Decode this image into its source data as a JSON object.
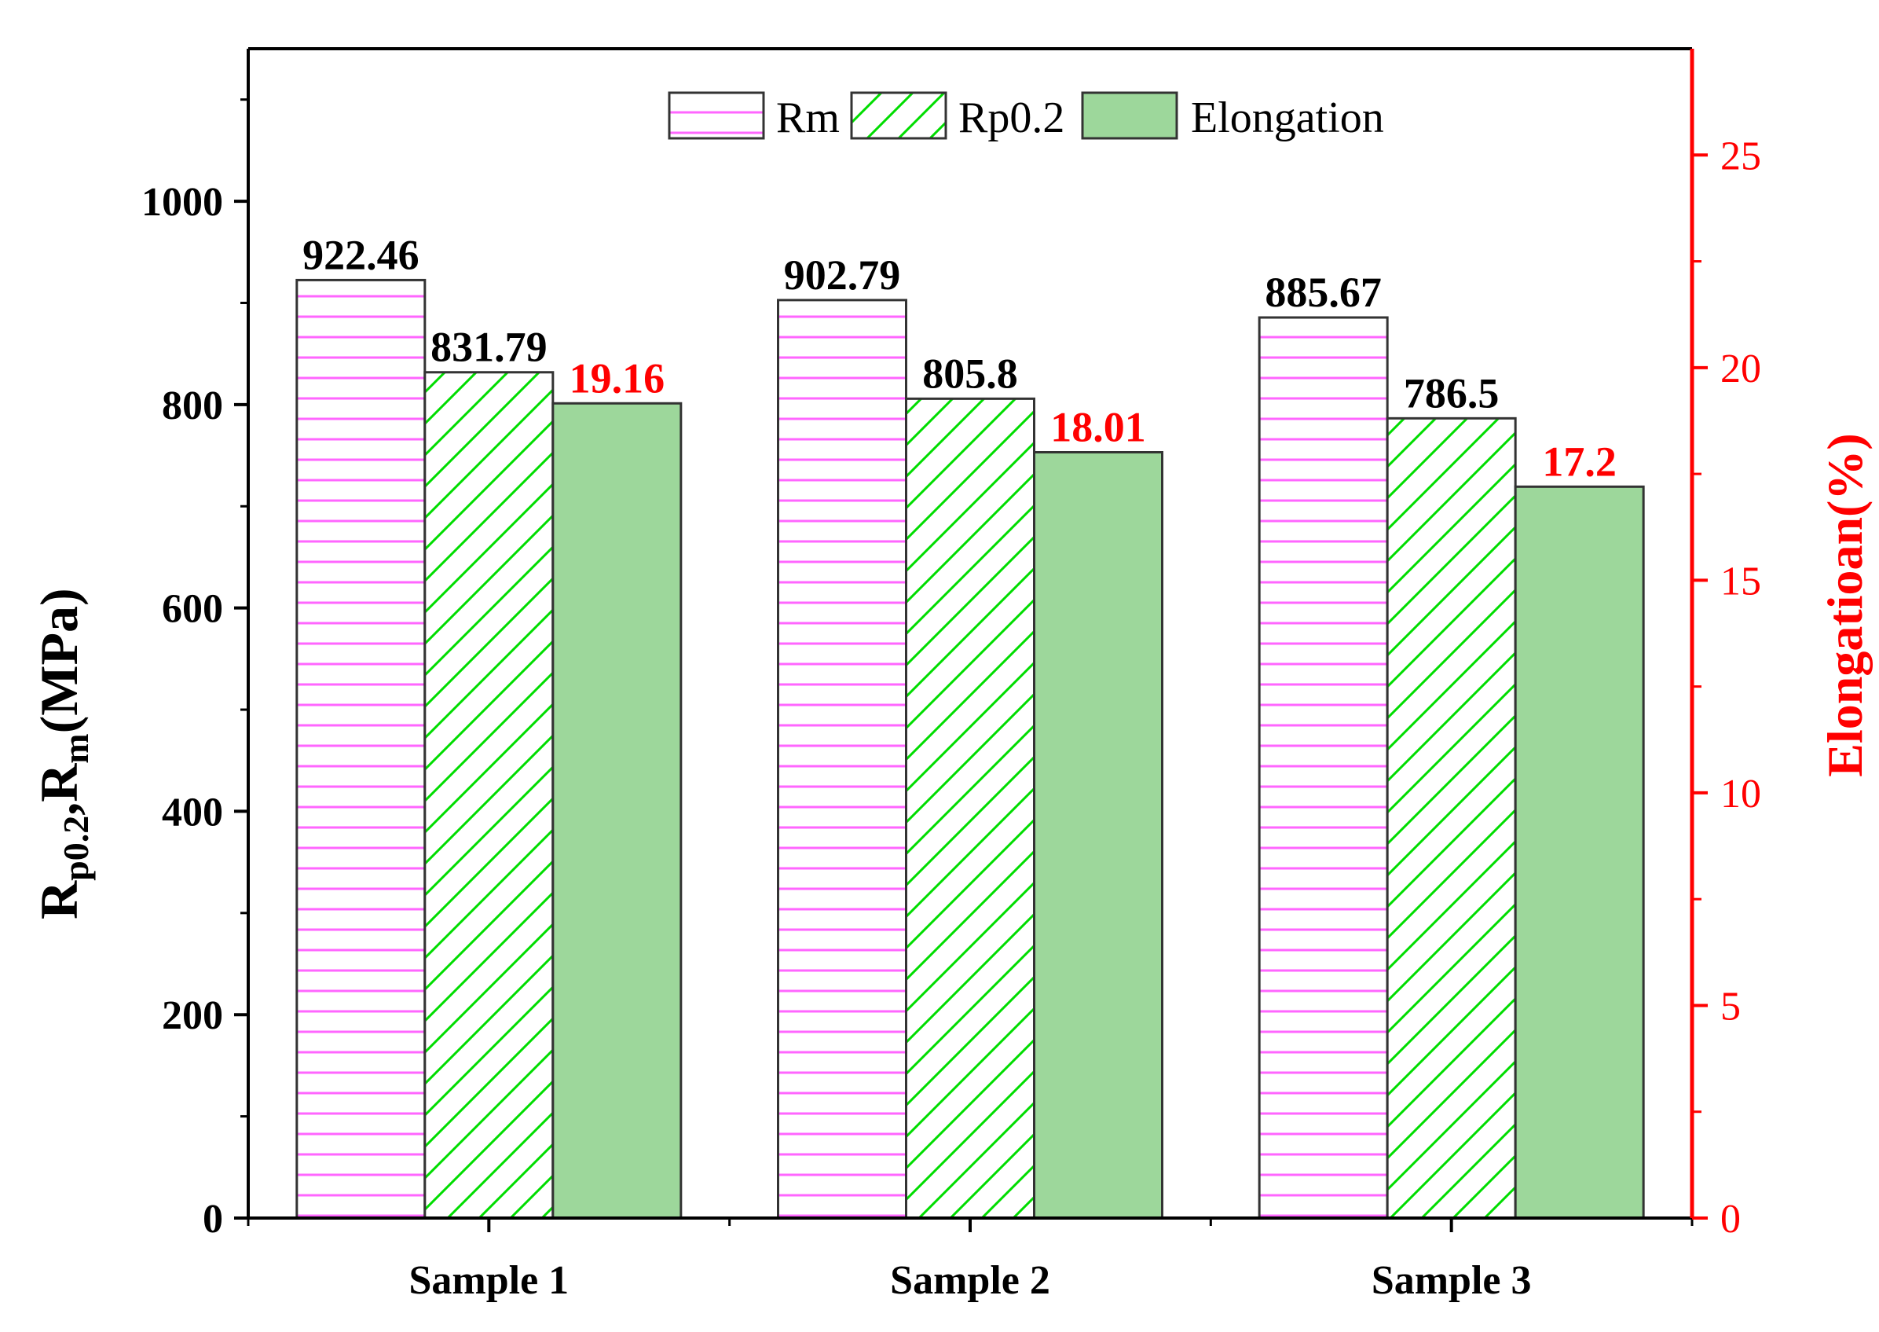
{
  "chart_data": {
    "type": "bar",
    "categories": [
      "Sample 1",
      "Sample 2",
      "Sample 3"
    ],
    "series": [
      {
        "name": "Rm",
        "axis": "left",
        "values": [
          922.46,
          902.79,
          885.67
        ],
        "labels": [
          "922.46",
          "902.79",
          "885.67"
        ],
        "label_color": "#000000"
      },
      {
        "name": "Rp0.2",
        "axis": "left",
        "values": [
          831.79,
          805.8,
          786.5
        ],
        "labels": [
          "831.79",
          "805.8",
          "786.5"
        ],
        "label_color": "#000000"
      },
      {
        "name": "Elongation",
        "axis": "right",
        "values": [
          19.16,
          18.01,
          17.2
        ],
        "labels": [
          "19.16",
          "18.01",
          "17.2"
        ],
        "label_color": "#ff0000"
      }
    ],
    "left_axis": {
      "label_main": "R",
      "label_sub1": "p0.2",
      "label_mid": ",R",
      "label_sub2": "m",
      "label_unit": "(MPa)",
      "ylim": [
        0,
        1150
      ],
      "ticks": [
        0,
        200,
        400,
        600,
        800,
        1000
      ],
      "tick_labels": [
        "0",
        "200",
        "400",
        "600",
        "800",
        "1000"
      ]
    },
    "right_axis": {
      "label": "Elongatioan(%)",
      "ylim": [
        0,
        27.5
      ],
      "ticks": [
        0,
        5,
        10,
        15,
        20,
        25
      ],
      "tick_labels": [
        "0",
        "5",
        "10",
        "15",
        "20",
        "25"
      ],
      "color": "#ff0000"
    },
    "legend_position": "top-center",
    "colors": {
      "rm_hatch": "#ff66ff",
      "rp_hatch": "#00dd00",
      "elong_fill": "#9dd79b",
      "bar_edge": "#333333",
      "axis_right": "#ff0000"
    }
  }
}
